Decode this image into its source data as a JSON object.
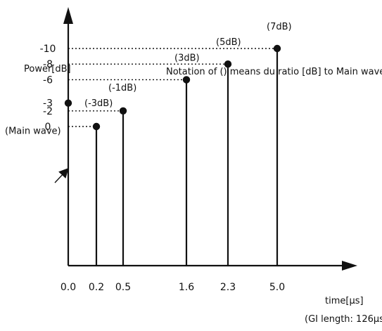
{
  "chart_data": {
    "type": "stem",
    "title": "",
    "note": "Notation of () means du ratio [dB] to Main wave",
    "ylabel": "Power[dB]",
    "xlabel": "time[μs]",
    "footnote": "(GI length: 126μs)",
    "x_tick_labels": [
      "0.0",
      "0.2",
      "0.5",
      "1.6",
      "2.3",
      "5.0"
    ],
    "y_tick_labels": [
      "0",
      "-2",
      "-3",
      "-6",
      "-8",
      "-10"
    ],
    "y_tick_values": [
      0,
      -2,
      -3,
      -6,
      -8,
      -10
    ],
    "points": [
      {
        "x": 0.0,
        "y": -3,
        "label": "(Main wave)"
      },
      {
        "x": 0.2,
        "y": 0,
        "label": "(-3dB)"
      },
      {
        "x": 0.5,
        "y": -2,
        "label": "(-1dB)"
      },
      {
        "x": 1.6,
        "y": -6,
        "label": "(3dB)"
      },
      {
        "x": 2.3,
        "y": -8,
        "label": "(5dB)"
      },
      {
        "x": 5.0,
        "y": -10,
        "label": "(7dB)"
      }
    ],
    "colors": {
      "ink": "#111111"
    }
  }
}
